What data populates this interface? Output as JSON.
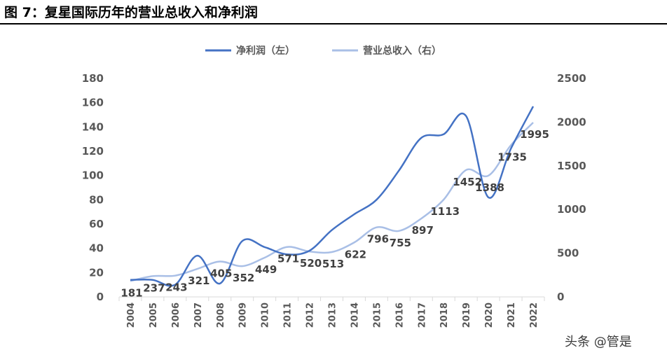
{
  "figure": {
    "title": "图 7：复星国际历年的营业总收入和净利润",
    "watermark": "头条 @管是"
  },
  "colors": {
    "net_profit": "#4472c4",
    "revenue": "#a9bfe6",
    "axis_text": "#595959",
    "data_label": "#404040",
    "axis_line": "#d9d9d9"
  },
  "chart_data": {
    "type": "line",
    "x": [
      "2004",
      "2005",
      "2006",
      "2007",
      "2008",
      "2009",
      "2010",
      "2011",
      "2012",
      "2013",
      "2014",
      "2015",
      "2016",
      "2017",
      "2018",
      "2019",
      "2020",
      "2021",
      "2022"
    ],
    "series": [
      {
        "name": "净利润（左）",
        "axis": "left",
        "values": [
          14,
          14,
          10,
          34,
          11,
          46,
          41,
          35,
          38,
          55,
          68,
          80,
          104,
          131,
          134,
          149,
          82,
          122,
          157
        ]
      },
      {
        "name": "营业总收入（右）",
        "axis": "right",
        "values": [
          181,
          237,
          243,
          321,
          405,
          352,
          449,
          571,
          520,
          513,
          622,
          796,
          755,
          897,
          1113,
          1452,
          1388,
          1735,
          1995
        ]
      }
    ],
    "data_labels": [
      "181",
      "237",
      "243",
      "321",
      "405",
      "352",
      "449",
      "571",
      "520",
      "513",
      "622",
      "796",
      "755",
      "897",
      "1113",
      "1452",
      "1388",
      "1735",
      "1995"
    ],
    "y_left": {
      "ticks": [
        "0",
        "20",
        "40",
        "60",
        "80",
        "100",
        "120",
        "140",
        "160",
        "180"
      ],
      "ylim": [
        0,
        180
      ]
    },
    "y_right": {
      "ticks": [
        "0",
        "500",
        "1000",
        "1500",
        "2000",
        "2500"
      ],
      "ylim": [
        0,
        2500
      ]
    },
    "legend": "top-center",
    "grid": false
  }
}
